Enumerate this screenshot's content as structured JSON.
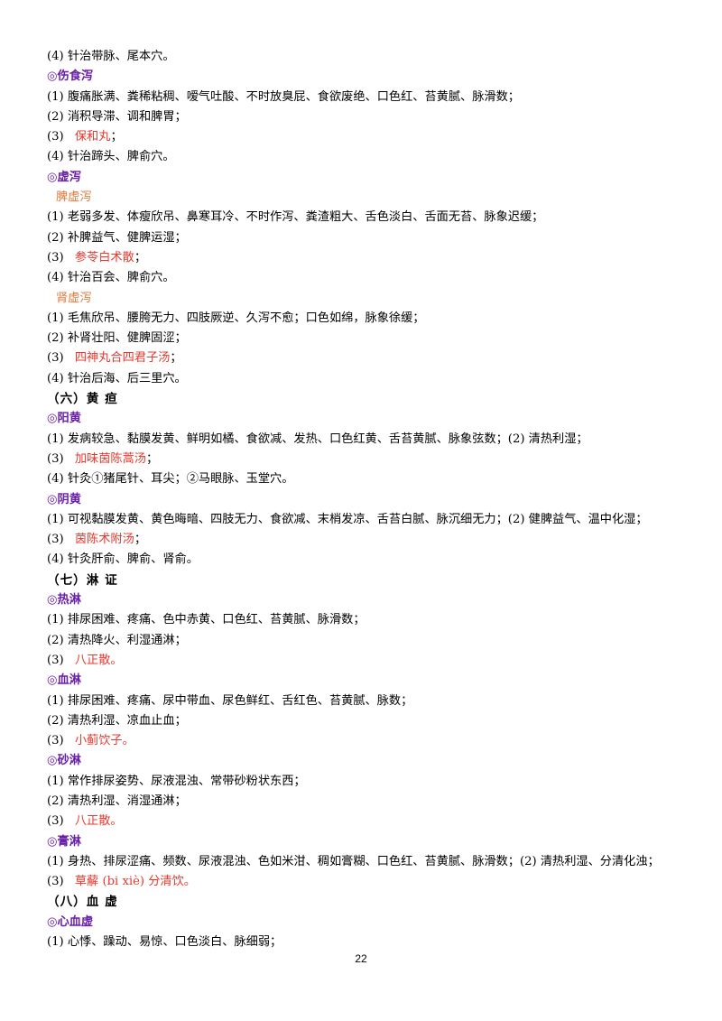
{
  "lines": [
    {
      "type": "line",
      "text": "(4) 针治带脉、尾本穴。"
    },
    {
      "type": "heading",
      "text": "◎伤食泻"
    },
    {
      "type": "line",
      "text": "(1) 腹痛胀满、粪稀粘稠、嗳气吐酸、不时放臭屁、食欲废绝、口色红、苔黄腻、脉滑数；"
    },
    {
      "type": "line",
      "text": "(2) 消积导滞、调和脾胃；"
    },
    {
      "type": "rx",
      "prefix": "(3) ",
      "text": "保和丸",
      "suffix": "；"
    },
    {
      "type": "line",
      "text": "(4) 针治蹄头、脾俞穴。"
    },
    {
      "type": "heading",
      "text": "◎虚泻"
    },
    {
      "type": "sub",
      "text": "脾虚泻"
    },
    {
      "type": "line",
      "text": "(1) 老弱多发、体瘦欣吊、鼻寒耳冷、不时作泻、粪渣粗大、舌色淡白、舌面无苔、脉象迟缓；"
    },
    {
      "type": "line",
      "text": "(2) 补脾益气、健脾运湿；"
    },
    {
      "type": "rx",
      "prefix": "(3) ",
      "text": "参苓白术散",
      "suffix": "；"
    },
    {
      "type": "line",
      "text": "(4) 针治百会、脾俞穴。"
    },
    {
      "type": "sub",
      "text": "肾虚泻"
    },
    {
      "type": "line",
      "text": "(1) 毛焦欣吊、腰胯无力、四肢厥逆、久泻不愈；口色如绵，脉象徐缓；"
    },
    {
      "type": "line",
      "text": "(2) 补肾壮阳、健脾固涩；"
    },
    {
      "type": "rx",
      "prefix": "(3) ",
      "text": "四神丸合四君子汤",
      "suffix": "；"
    },
    {
      "type": "line",
      "text": "(4) 针治后海、后三里穴。"
    },
    {
      "type": "section",
      "text": "（六）黄 疸"
    },
    {
      "type": "heading",
      "text": "◎阳黄"
    },
    {
      "type": "line",
      "text": "(1) 发病较急、黏膜发黄、鲜明如橘、食欲减、发热、口色红黄、舌苔黄腻、脉象弦数；(2) 清热利湿；"
    },
    {
      "type": "rx",
      "prefix": "(3) ",
      "text": "加味茵陈蒿汤",
      "suffix": "；"
    },
    {
      "type": "line",
      "text": "(4) 针灸①猪尾针、耳尖；②马眼脉、玉堂穴。"
    },
    {
      "type": "heading",
      "text": "◎阴黄"
    },
    {
      "type": "wrap",
      "text": "(1) 可视黏膜发黄、黄色晦暗、四肢无力、食欲减、末梢发凉、舌苔白腻、脉沉细无力；(2) 健脾益气、温中化湿；"
    },
    {
      "type": "rx",
      "prefix": "(3) ",
      "text": "茵陈术附汤",
      "suffix": "；"
    },
    {
      "type": "line",
      "text": "(4) 针灸肝俞、脾俞、肾俞。"
    },
    {
      "type": "section",
      "text": "（七）淋 证"
    },
    {
      "type": "heading",
      "text": "◎热淋"
    },
    {
      "type": "line",
      "text": "(1) 排尿困难、疼痛、色中赤黄、口色红、苔黄腻、脉滑数；"
    },
    {
      "type": "line",
      "text": "(2) 清热降火、利湿通淋；"
    },
    {
      "type": "rx",
      "prefix": "(3) ",
      "text": "八正散。",
      "suffix": ""
    },
    {
      "type": "heading",
      "text": "◎血淋"
    },
    {
      "type": "line",
      "text": "(1) 排尿困难、疼痛、尿中带血、尿色鲜红、舌红色、苔黄腻、脉数；"
    },
    {
      "type": "line",
      "text": "(2) 清热利湿、凉血止血；"
    },
    {
      "type": "rx",
      "prefix": "(3) ",
      "text": "小蓟饮子。",
      "suffix": ""
    },
    {
      "type": "heading",
      "text": "◎砂淋"
    },
    {
      "type": "line",
      "text": "(1) 常作排尿姿势、尿液混浊、常带砂粉状东西；"
    },
    {
      "type": "line",
      "text": "(2) 清热利湿、消湿通淋；"
    },
    {
      "type": "rx",
      "prefix": "(3) ",
      "text": "八正散。",
      "suffix": ""
    },
    {
      "type": "heading",
      "text": "◎膏淋"
    },
    {
      "type": "wrap",
      "text": "(1) 身热、排尿涩痛、频数、尿液混浊、色如米泔、稠如膏糊、口色红、苔黄腻、脉滑数；(2) 清热利湿、分清化浊；"
    },
    {
      "type": "rx",
      "prefix": "(3) ",
      "text": "草薢 (bi    xiè) 分清饮。",
      "suffix": ""
    },
    {
      "type": "section",
      "text": "（八）血 虚"
    },
    {
      "type": "heading",
      "text": "◎心血虚"
    },
    {
      "type": "line",
      "text": "(1) 心悸、躁动、易惊、口色淡白、脉细弱；"
    }
  ],
  "page_number": "22"
}
